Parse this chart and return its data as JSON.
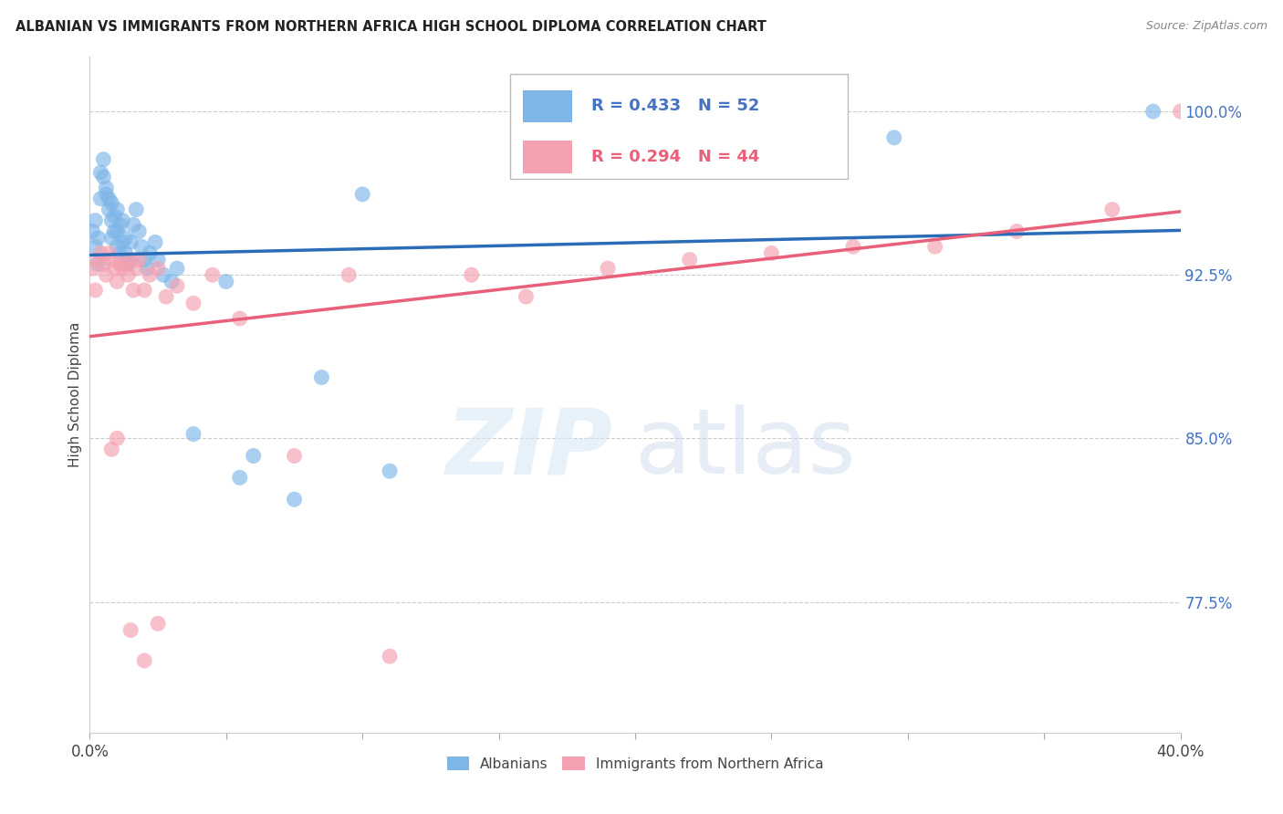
{
  "title": "ALBANIAN VS IMMIGRANTS FROM NORTHERN AFRICA HIGH SCHOOL DIPLOMA CORRELATION CHART",
  "source": "Source: ZipAtlas.com",
  "ylabel": "High School Diploma",
  "xmin": 0.0,
  "xmax": 0.4,
  "ymin": 0.715,
  "ymax": 1.025,
  "blue_R": 0.433,
  "blue_N": 52,
  "pink_R": 0.294,
  "pink_N": 44,
  "blue_color": "#7EB6E8",
  "pink_color": "#F4A0B0",
  "blue_line_color": "#2B6CB8",
  "pink_line_color": "#E8607A",
  "legend_label_blue": "Albanians",
  "legend_label_pink": "Immigrants from Northern Africa",
  "ytick_positions": [
    0.775,
    0.85,
    0.925,
    1.0
  ],
  "ytick_labels": [
    "77.5%",
    "85.0%",
    "92.5%",
    "100.0%"
  ],
  "blue_scatter_x": [
    0.001,
    0.002,
    0.002,
    0.003,
    0.003,
    0.004,
    0.004,
    0.005,
    0.005,
    0.006,
    0.006,
    0.007,
    0.007,
    0.008,
    0.008,
    0.008,
    0.009,
    0.009,
    0.01,
    0.01,
    0.01,
    0.011,
    0.011,
    0.012,
    0.012,
    0.013,
    0.013,
    0.014,
    0.015,
    0.015,
    0.016,
    0.017,
    0.018,
    0.019,
    0.02,
    0.021,
    0.022,
    0.024,
    0.025,
    0.027,
    0.03,
    0.032,
    0.038,
    0.05,
    0.055,
    0.06,
    0.075,
    0.085,
    0.1,
    0.11,
    0.295,
    0.39
  ],
  "blue_scatter_y": [
    0.945,
    0.938,
    0.95,
    0.93,
    0.942,
    0.96,
    0.972,
    0.97,
    0.978,
    0.965,
    0.962,
    0.955,
    0.96,
    0.95,
    0.942,
    0.958,
    0.945,
    0.952,
    0.938,
    0.945,
    0.955,
    0.935,
    0.948,
    0.94,
    0.95,
    0.935,
    0.942,
    0.93,
    0.932,
    0.94,
    0.948,
    0.955,
    0.945,
    0.938,
    0.932,
    0.928,
    0.935,
    0.94,
    0.932,
    0.925,
    0.922,
    0.928,
    0.852,
    0.922,
    0.832,
    0.842,
    0.822,
    0.878,
    0.962,
    0.835,
    0.988,
    1.0
  ],
  "pink_scatter_x": [
    0.001,
    0.002,
    0.003,
    0.004,
    0.005,
    0.006,
    0.007,
    0.008,
    0.009,
    0.01,
    0.011,
    0.012,
    0.013,
    0.014,
    0.015,
    0.016,
    0.017,
    0.018,
    0.02,
    0.022,
    0.025,
    0.028,
    0.032,
    0.038,
    0.045,
    0.055,
    0.075,
    0.095,
    0.11,
    0.14,
    0.16,
    0.19,
    0.22,
    0.25,
    0.28,
    0.31,
    0.34,
    0.375,
    0.4,
    0.008,
    0.01,
    0.015,
    0.02,
    0.025
  ],
  "pink_scatter_y": [
    0.928,
    0.918,
    0.932,
    0.935,
    0.93,
    0.925,
    0.935,
    0.932,
    0.928,
    0.922,
    0.93,
    0.928,
    0.93,
    0.925,
    0.932,
    0.918,
    0.928,
    0.932,
    0.918,
    0.925,
    0.928,
    0.915,
    0.92,
    0.912,
    0.925,
    0.905,
    0.842,
    0.925,
    0.75,
    0.925,
    0.915,
    0.928,
    0.932,
    0.935,
    0.938,
    0.938,
    0.945,
    0.955,
    1.0,
    0.845,
    0.85,
    0.762,
    0.748,
    0.765
  ]
}
